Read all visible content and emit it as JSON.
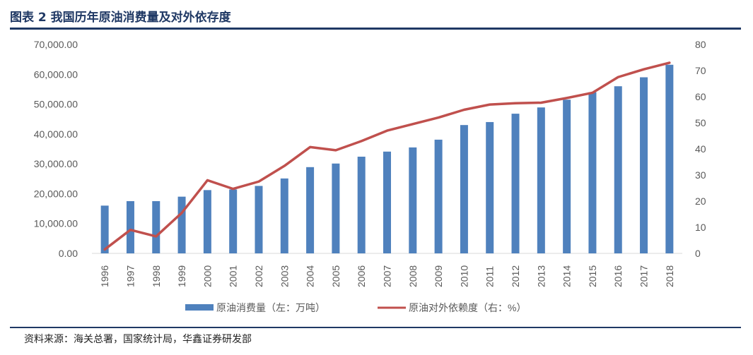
{
  "title": "图表 2 我国历年原油消费量及对外依存度",
  "source": "资料来源：海关总署，国家统计局，华鑫证券研发部",
  "colors": {
    "bar": "#4f81bd",
    "line": "#c0504d",
    "axis": "#d9d9d9",
    "text": "#595959"
  },
  "chart_data": {
    "type": "bar",
    "categories": [
      "1996",
      "1997",
      "1998",
      "1999",
      "2000",
      "2001",
      "2002",
      "2003",
      "2004",
      "2005",
      "2006",
      "2007",
      "2008",
      "2009",
      "2010",
      "2011",
      "2012",
      "2013",
      "2014",
      "2015",
      "2016",
      "2017",
      "2018"
    ],
    "series": [
      {
        "name": "原油消费量（左：万吨）",
        "type": "bar",
        "axis": "left",
        "values": [
          16000,
          17500,
          17500,
          19000,
          21200,
          21400,
          22600,
          25100,
          28900,
          30100,
          32400,
          34100,
          35500,
          38100,
          43000,
          44000,
          46800,
          48900,
          51500,
          54000,
          56000,
          59000,
          63200
        ]
      },
      {
        "name": "原油对外依赖度（右：%）",
        "type": "line",
        "axis": "right",
        "values": [
          1.5,
          9,
          6.5,
          15.5,
          28,
          24.7,
          27.5,
          33.5,
          40.7,
          39.5,
          43,
          47,
          49.5,
          52,
          55,
          57,
          57.5,
          57.7,
          59.5,
          61.5,
          67.5,
          70.5,
          73
        ]
      }
    ],
    "left_axis": {
      "min": 0,
      "max": 70000,
      "step": 10000,
      "ticks": [
        "0.00",
        "10,000.00",
        "20,000.00",
        "30,000.00",
        "40,000.00",
        "50,000.00",
        "60,000.00",
        "70,000.00"
      ]
    },
    "right_axis": {
      "min": 0,
      "max": 80,
      "step": 10,
      "ticks": [
        "0",
        "10",
        "20",
        "30",
        "40",
        "50",
        "60",
        "70",
        "80"
      ]
    },
    "grid": false,
    "legend": "bottom"
  }
}
